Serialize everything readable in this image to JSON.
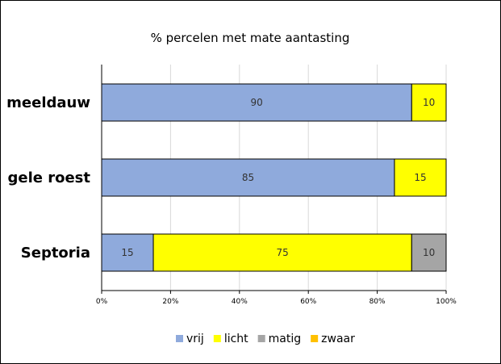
{
  "chart_data": {
    "type": "bar",
    "orientation": "horizontal",
    "stacked": true,
    "title": "% percelen met mate aantasting",
    "categories": [
      "meeldauw",
      "gele roest",
      "Septoria"
    ],
    "series": [
      {
        "name": "vrij",
        "color": "#8faadc",
        "values": [
          90,
          85,
          15
        ]
      },
      {
        "name": "licht",
        "color": "#ffff00",
        "values": [
          10,
          15,
          75
        ]
      },
      {
        "name": "matig",
        "color": "#a5a5a5",
        "values": [
          0,
          0,
          10
        ]
      },
      {
        "name": "zwaar",
        "color": "#ffc000",
        "values": [
          0,
          0,
          0
        ]
      }
    ],
    "xlim": [
      0,
      100
    ],
    "x_ticks": [
      "0%",
      "20%",
      "40%",
      "60%",
      "80%",
      "100%"
    ],
    "gridlines": true,
    "legend_position": "bottom"
  }
}
